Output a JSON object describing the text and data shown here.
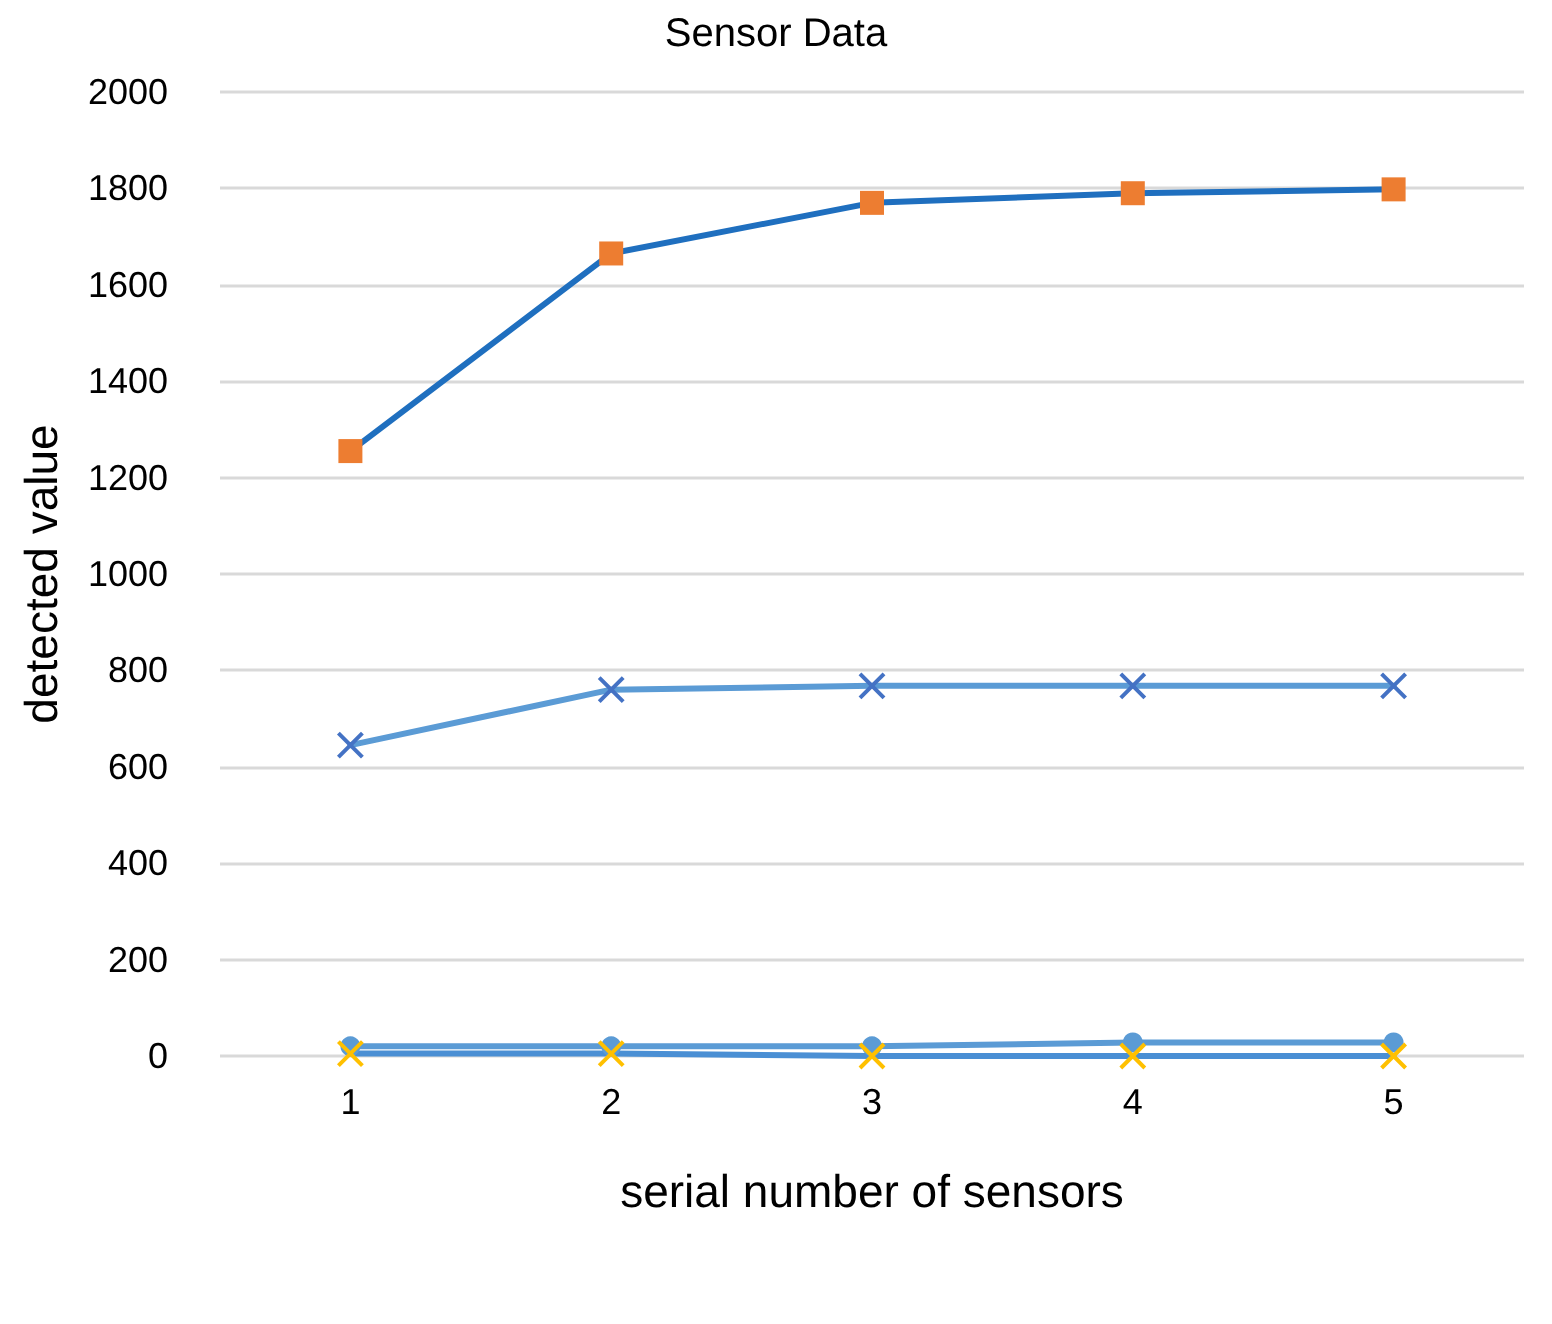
{
  "chart_data": {
    "type": "line",
    "title": "Sensor Data",
    "xlabel": "serial number of sensors",
    "ylabel": "detected value",
    "categories": [
      "1",
      "2",
      "3",
      "4",
      "5"
    ],
    "series": [
      {
        "color": "#1f6fbf",
        "colors": [
          "#ed7d31",
          "#ed7d31",
          "#ed7d31",
          "#ed7d31",
          "#ed7d31"
        ],
        "marker": "square",
        "values": [
          1255,
          1665,
          1770,
          1790,
          1798
        ]
      },
      {
        "color": "#5b9bd5",
        "colors": [
          "#4472c4",
          "#4472c4",
          "#4472c4",
          "#4472c4",
          "#4472c4"
        ],
        "marker": "cross",
        "values": [
          645,
          760,
          768,
          768,
          768
        ]
      },
      {
        "color": "#5b9bd5",
        "colors": [
          "#5b9bd5",
          "#5b9bd5",
          "#5b9bd5",
          "#5b9bd5",
          "#5b9bd5"
        ],
        "marker": "circle",
        "values": [
          20,
          20,
          20,
          28,
          28
        ]
      },
      {
        "color": "#4a8fd4",
        "colors": [
          "#ffc000",
          "#ffc000",
          "#ffc000",
          "#ffc000",
          "#ffc000"
        ],
        "marker": "cross",
        "values": [
          5,
          5,
          0,
          0,
          0
        ]
      }
    ],
    "ylim": [
      0,
      2000
    ],
    "yticks": [
      0,
      200,
      400,
      600,
      800,
      1000,
      1200,
      1400,
      1600,
      1800,
      2000
    ],
    "grid": "y",
    "line_style": "solid"
  }
}
